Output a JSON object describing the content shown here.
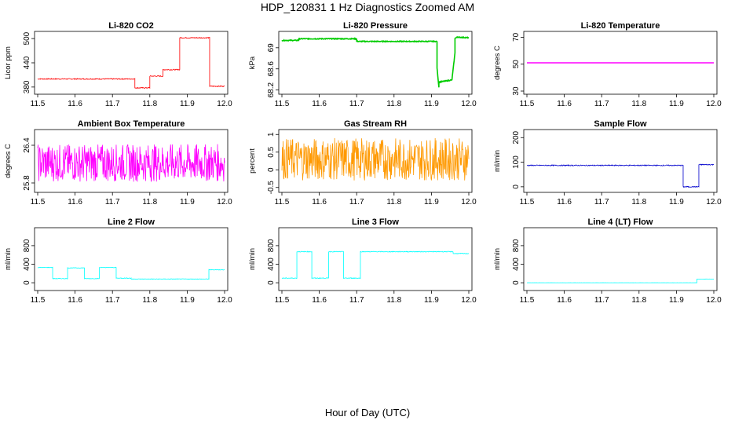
{
  "title": "HDP_120831  1 Hz Diagnostics Zoomed AM",
  "xlabel": "Hour of Day (UTC)",
  "x_ticks": [
    "11.5",
    "11.6",
    "11.7",
    "11.8",
    "11.9",
    "12.0"
  ],
  "chart_data": [
    {
      "type": "line",
      "title": "Li-820 CO2",
      "ylabel": "Licor ppm",
      "color": "#ff0000",
      "xlim": [
        11.5,
        12.0
      ],
      "ylim": [
        370,
        510
      ],
      "yticks": [
        380,
        440,
        500
      ],
      "x": [
        11.5,
        11.76,
        11.76,
        11.8,
        11.8,
        11.835,
        11.835,
        11.88,
        11.88,
        11.96,
        11.96,
        11.965,
        12.0
      ],
      "values": [
        400,
        400,
        378,
        378,
        407,
        407,
        423,
        423,
        502,
        502,
        382,
        382,
        382
      ],
      "noise": 1.2
    },
    {
      "type": "line",
      "title": "Li-820 Pressure",
      "ylabel": "kPa",
      "color": "#00cc00",
      "xlim": [
        11.5,
        12.0
      ],
      "ylim": [
        68.18,
        69.25
      ],
      "yticks": [
        68.2,
        68.6,
        69.0
      ],
      "x": [
        11.5,
        11.545,
        11.545,
        11.7,
        11.7,
        11.915,
        11.915,
        11.92,
        11.92,
        11.955,
        11.955,
        11.963,
        11.963,
        11.97,
        11.97,
        12.0
      ],
      "values": [
        69.14,
        69.14,
        69.17,
        69.17,
        69.12,
        69.12,
        68.62,
        68.25,
        68.35,
        68.39,
        68.4,
        68.9,
        69.18,
        69.2,
        69.2,
        69.19
      ],
      "noise": 0.008
    },
    {
      "type": "line",
      "title": "Li-820 Temperature",
      "ylabel": "degrees C",
      "color": "#ff00ff",
      "xlim": [
        11.5,
        12.0
      ],
      "ylim": [
        30,
        72
      ],
      "yticks": [
        30,
        50,
        70
      ],
      "x": [
        11.5,
        12.0
      ],
      "values": [
        51,
        51
      ],
      "noise": 0
    },
    {
      "type": "line",
      "title": "Ambient Box Temperature",
      "ylabel": "degrees C",
      "color": "#ff00ff",
      "xlim": [
        11.5,
        12.0
      ],
      "ylim": [
        25.7,
        26.6
      ],
      "yticks": [
        25.8,
        26.4
      ],
      "x": [
        11.5,
        12.0
      ],
      "values": [
        26.12,
        26.12
      ],
      "noise": 0.3
    },
    {
      "type": "line",
      "title": "Gas Stream RH",
      "ylabel": "percent",
      "color": "#ff9900",
      "xlim": [
        11.5,
        12.0
      ],
      "ylim": [
        -0.55,
        1.05
      ],
      "yticks": [
        -0.5,
        0.0,
        0.5,
        1.0
      ],
      "x": [
        11.5,
        12.0
      ],
      "values": [
        0.3,
        0.3
      ],
      "noise": 0.6
    },
    {
      "type": "line",
      "title": "Sample Flow",
      "ylabel": "ml/min",
      "color": "#0000cc",
      "xlim": [
        11.5,
        12.0
      ],
      "ylim": [
        -10,
        220
      ],
      "yticks": [
        0,
        100,
        200
      ],
      "x": [
        11.5,
        11.918,
        11.918,
        11.96,
        11.96,
        12.0
      ],
      "values": [
        87,
        87,
        0,
        0,
        90,
        90
      ],
      "noise": 2
    },
    {
      "type": "line",
      "title": "Line 2 Flow",
      "ylabel": "ml/min",
      "color": "#00ffff",
      "xlim": [
        11.5,
        12.0
      ],
      "ylim": [
        -100,
        1120
      ],
      "yticks": [
        0,
        400,
        800
      ],
      "x": [
        11.5,
        11.54,
        11.54,
        11.58,
        11.58,
        11.625,
        11.625,
        11.665,
        11.665,
        11.71,
        11.71,
        11.75,
        11.75,
        11.958,
        11.958,
        12.0
      ],
      "values": [
        330,
        330,
        90,
        90,
        320,
        320,
        90,
        90,
        330,
        330,
        100,
        100,
        80,
        80,
        280,
        280
      ],
      "noise": 6
    },
    {
      "type": "line",
      "title": "Line 3 Flow",
      "ylabel": "ml/min",
      "color": "#00ffff",
      "xlim": [
        11.5,
        12.0
      ],
      "ylim": [
        -100,
        1120
      ],
      "yticks": [
        0,
        400,
        800
      ],
      "x": [
        11.5,
        11.54,
        11.54,
        11.58,
        11.58,
        11.625,
        11.625,
        11.665,
        11.665,
        11.71,
        11.71,
        11.958,
        11.958,
        12.0
      ],
      "values": [
        100,
        100,
        670,
        670,
        100,
        100,
        670,
        670,
        100,
        100,
        670,
        670,
        630,
        630
      ],
      "noise": 8
    },
    {
      "type": "line",
      "title": "Line 4 (LT) Flow",
      "ylabel": "ml/min",
      "color": "#00ffff",
      "xlim": [
        11.5,
        12.0
      ],
      "ylim": [
        -100,
        1120
      ],
      "yticks": [
        0,
        400,
        800
      ],
      "x": [
        11.5,
        11.955,
        11.955,
        12.0
      ],
      "values": [
        0,
        0,
        80,
        80
      ],
      "noise": 1
    }
  ]
}
